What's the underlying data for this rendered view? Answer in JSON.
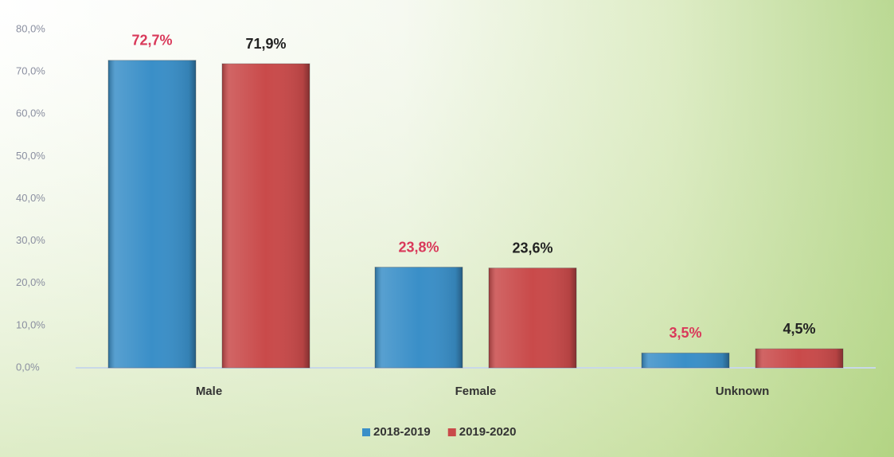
{
  "chart_data": {
    "type": "bar",
    "categories": [
      "Male",
      "Female",
      "Unknown"
    ],
    "series": [
      {
        "name": "2018-2019",
        "color": "#3a8fc8",
        "label_color": "#d9395a",
        "values": [
          72.7,
          23.8,
          3.5
        ],
        "value_labels": [
          "72,7%",
          "23,8%",
          "3,5%"
        ]
      },
      {
        "name": "2019-2020",
        "color": "#c94a4a",
        "label_color": "#222222",
        "values": [
          71.9,
          23.6,
          4.5
        ],
        "value_labels": [
          "71,9%",
          "23,6%",
          "4,5%"
        ]
      }
    ],
    "ylim": [
      0,
      80
    ],
    "yticks": [
      {
        "value": 0,
        "label": "0,0%"
      },
      {
        "value": 10,
        "label": "10,0%"
      },
      {
        "value": 20,
        "label": "20,0%"
      },
      {
        "value": 30,
        "label": "30,0%"
      },
      {
        "value": 40,
        "label": "40,0%"
      },
      {
        "value": 50,
        "label": "50,0%"
      },
      {
        "value": 60,
        "label": "60,0%"
      },
      {
        "value": 70,
        "label": "70,0%"
      },
      {
        "value": 80,
        "label": "80,0%"
      }
    ],
    "grid": false,
    "legend": "bottom"
  }
}
